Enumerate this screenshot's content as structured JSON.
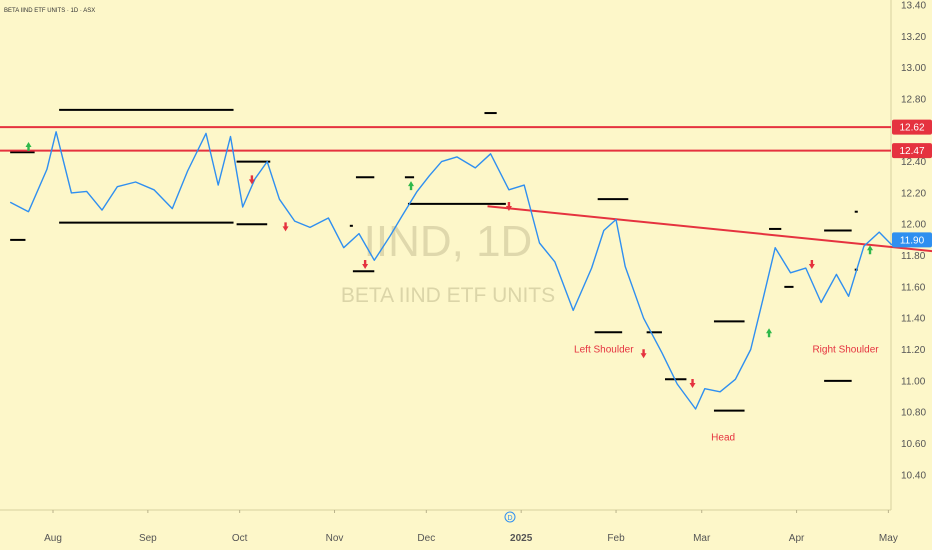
{
  "header": {
    "title": "BETA IIND ETF UNITS · 1D · ASX"
  },
  "watermark": {
    "ticker": "IIND, 1D",
    "name": "BETA IIND ETF UNITS"
  },
  "colors": {
    "background": "#fdf7c9",
    "price_line": "#2f8ff0",
    "resistance": "#e5323f",
    "neckline": "#e5323f",
    "annotation": "#e5323f",
    "up_marker": "#2fb84a",
    "down_marker": "#e5323f",
    "level_segment": "#000000",
    "last_price_badge": "#2f8ff0"
  },
  "chart_data": {
    "type": "line",
    "title": "BETA IIND ETF UNITS · 1D · ASX",
    "interval": "1D",
    "exchange": "ASX",
    "y_axis": {
      "position": "right",
      "ylim": [
        10.3,
        13.4
      ],
      "ticks": [
        "13.40",
        "13.20",
        "13.00",
        "12.80",
        "12.60",
        "12.40",
        "12.20",
        "12.00",
        "11.80",
        "11.60",
        "11.40",
        "11.20",
        "11.00",
        "10.80",
        "10.60",
        "10.40"
      ]
    },
    "x_axis": {
      "ticks": [
        "Aug",
        "Sep",
        "Oct",
        "Nov",
        "Dec",
        "2025",
        "Feb",
        "Mar",
        "Apr",
        "May"
      ]
    },
    "grid": false,
    "series": [
      {
        "name": "IIND",
        "x": [
          "2024-07-18",
          "2024-07-24",
          "2024-07-30",
          "2024-08-02",
          "2024-08-07",
          "2024-08-12",
          "2024-08-17",
          "2024-08-22",
          "2024-08-28",
          "2024-09-03",
          "2024-09-09",
          "2024-09-14",
          "2024-09-20",
          "2024-09-24",
          "2024-09-28",
          "2024-10-02",
          "2024-10-06",
          "2024-10-10",
          "2024-10-14",
          "2024-10-19",
          "2024-10-24",
          "2024-10-30",
          "2024-11-04",
          "2024-11-09",
          "2024-11-14",
          "2024-11-19",
          "2024-11-23",
          "2024-11-28",
          "2024-12-02",
          "2024-12-06",
          "2024-12-11",
          "2024-12-17",
          "2024-12-22",
          "2024-12-28",
          "2025-01-02",
          "2025-01-07",
          "2025-01-12",
          "2025-01-18",
          "2025-01-24",
          "2025-01-28",
          "2025-02-01",
          "2025-02-04",
          "2025-02-10",
          "2025-02-16",
          "2025-02-21",
          "2025-02-27",
          "2025-03-02",
          "2025-03-07",
          "2025-03-12",
          "2025-03-17",
          "2025-03-21",
          "2025-03-25",
          "2025-03-30",
          "2025-04-04",
          "2025-04-09",
          "2025-04-14",
          "2025-04-18",
          "2025-04-23",
          "2025-04-28",
          "2025-05-02",
          "2025-05-06"
        ],
        "y": [
          12.14,
          12.08,
          12.35,
          12.59,
          12.2,
          12.21,
          12.09,
          12.24,
          12.27,
          12.22,
          12.1,
          12.34,
          12.58,
          12.25,
          12.56,
          12.11,
          12.29,
          12.4,
          12.16,
          12.02,
          11.98,
          12.04,
          11.85,
          11.94,
          11.77,
          11.92,
          12.05,
          12.21,
          12.31,
          12.4,
          12.43,
          12.36,
          12.45,
          12.22,
          12.25,
          11.88,
          11.76,
          11.45,
          11.72,
          11.96,
          12.03,
          11.73,
          11.4,
          11.18,
          10.98,
          10.82,
          10.95,
          10.93,
          11.01,
          11.2,
          11.52,
          11.85,
          11.69,
          11.72,
          11.5,
          11.68,
          11.54,
          11.86,
          11.95,
          11.87,
          11.9
        ]
      }
    ],
    "horizontal_lines": [
      {
        "label": "12.62",
        "value": 12.62
      },
      {
        "label": "12.47",
        "value": 12.47
      }
    ],
    "trendline": {
      "name": "neckline",
      "from": {
        "x": "2024-12-21",
        "y": 12.115
      },
      "to": {
        "x": "2025-05-17",
        "y": 11.825
      }
    },
    "level_segments": [
      {
        "from": "2024-07-18",
        "to": "2024-07-23",
        "y": 11.9
      },
      {
        "from": "2024-07-18",
        "to": "2024-07-26",
        "y": 12.46
      },
      {
        "from": "2024-08-03",
        "to": "2024-09-29",
        "y": 12.73
      },
      {
        "from": "2024-08-03",
        "to": "2024-09-29",
        "y": 12.01
      },
      {
        "from": "2024-09-30",
        "to": "2024-10-11",
        "y": 12.4
      },
      {
        "from": "2024-09-30",
        "to": "2024-10-10",
        "y": 12.0
      },
      {
        "from": "2024-11-06",
        "to": "2024-11-07",
        "y": 11.99
      },
      {
        "from": "2024-11-07",
        "to": "2024-11-14",
        "y": 11.7
      },
      {
        "from": "2024-11-08",
        "to": "2024-11-14",
        "y": 12.3
      },
      {
        "from": "2024-11-24",
        "to": "2024-11-27",
        "y": 12.3
      },
      {
        "from": "2024-11-25",
        "to": "2024-12-27",
        "y": 12.13
      },
      {
        "from": "2024-12-20",
        "to": "2024-12-24",
        "y": 12.71
      },
      {
        "from": "2025-01-26",
        "to": "2025-02-05",
        "y": 12.16
      },
      {
        "from": "2025-01-25",
        "to": "2025-02-03",
        "y": 11.31
      },
      {
        "from": "2025-02-11",
        "to": "2025-02-16",
        "y": 11.31
      },
      {
        "from": "2025-02-17",
        "to": "2025-02-24",
        "y": 11.01
      },
      {
        "from": "2025-03-05",
        "to": "2025-03-15",
        "y": 10.81
      },
      {
        "from": "2025-03-05",
        "to": "2025-03-15",
        "y": 11.38
      },
      {
        "from": "2025-03-23",
        "to": "2025-03-27",
        "y": 11.97
      },
      {
        "from": "2025-03-28",
        "to": "2025-03-31",
        "y": 11.6
      },
      {
        "from": "2025-04-10",
        "to": "2025-04-19",
        "y": 11.96
      },
      {
        "from": "2025-04-10",
        "to": "2025-04-19",
        "y": 11.0
      },
      {
        "from": "2025-04-20",
        "to": "2025-04-21",
        "y": 12.08
      },
      {
        "from": "2025-04-20",
        "to": "2025-04-21",
        "y": 11.71
      }
    ],
    "signal_markers": [
      {
        "type": "up",
        "x": "2024-07-24",
        "y": 12.5
      },
      {
        "type": "up",
        "x": "2024-11-26",
        "y": 12.25
      },
      {
        "type": "up",
        "x": "2025-03-23",
        "y": 11.31
      },
      {
        "type": "up",
        "x": "2025-04-25",
        "y": 11.84
      },
      {
        "type": "down",
        "x": "2024-10-05",
        "y": 12.28
      },
      {
        "type": "down",
        "x": "2024-10-16",
        "y": 11.98
      },
      {
        "type": "down",
        "x": "2024-11-11",
        "y": 11.74
      },
      {
        "type": "down",
        "x": "2024-12-28",
        "y": 12.11
      },
      {
        "type": "down",
        "x": "2025-02-10",
        "y": 11.17
      },
      {
        "type": "down",
        "x": "2025-02-26",
        "y": 10.98
      },
      {
        "type": "down",
        "x": "2025-04-06",
        "y": 11.74
      }
    ],
    "annotations": [
      {
        "text": "Left Shoulder",
        "x": "2025-01-28",
        "y": 11.18
      },
      {
        "text": "Head",
        "x": "2025-03-08",
        "y": 10.62
      },
      {
        "text": "Right Shoulder",
        "x": "2025-04-17",
        "y": 11.18
      }
    ],
    "last_price": {
      "label": "11.90",
      "value": 11.9
    }
  }
}
